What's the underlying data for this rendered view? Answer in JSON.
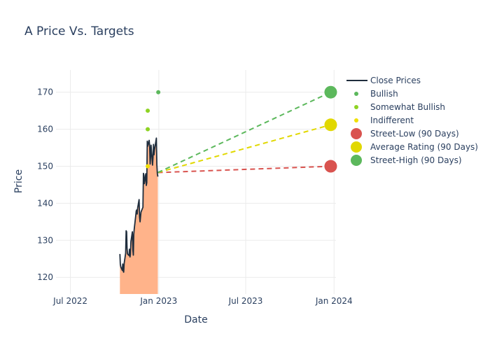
{
  "chart_data": {
    "type": "line",
    "title": "A Price Vs. Targets",
    "xlabel": "Date",
    "ylabel": "Price",
    "x_ticks": [
      {
        "label": "Jul 2022",
        "date": "2022-07-01"
      },
      {
        "label": "Jan 2023",
        "date": "2023-01-01"
      },
      {
        "label": "Jul 2023",
        "date": "2023-07-01"
      },
      {
        "label": "Jan 2024",
        "date": "2024-01-01"
      }
    ],
    "y_ticks": [
      120,
      130,
      140,
      150,
      160,
      170
    ],
    "xlim": [
      "2022-06-01",
      "2024-01-05"
    ],
    "ylim": [
      115.5,
      176
    ],
    "grid": true,
    "legend_position": "right",
    "close_prices": {
      "name": "Close Prices",
      "color": "#1f2d3d",
      "fill_color": "#ffb38a",
      "points": [
        [
          "2022-10-12",
          126.3
        ],
        [
          "2022-10-13",
          123.5
        ],
        [
          "2022-10-14",
          122.8
        ],
        [
          "2022-10-17",
          121.9
        ],
        [
          "2022-10-18",
          123.6
        ],
        [
          "2022-10-19",
          121.6
        ],
        [
          "2022-10-20",
          121.4
        ],
        [
          "2022-10-21",
          123.8
        ],
        [
          "2022-10-24",
          126.5
        ],
        [
          "2022-10-25",
          132.6
        ],
        [
          "2022-10-26",
          132.3
        ],
        [
          "2022-10-27",
          127.9
        ],
        [
          "2022-10-28",
          126.3
        ],
        [
          "2022-10-31",
          125.9
        ],
        [
          "2022-11-01",
          127.6
        ],
        [
          "2022-11-02",
          125.5
        ],
        [
          "2022-11-03",
          126.2
        ],
        [
          "2022-11-04",
          129.6
        ],
        [
          "2022-11-07",
          132.3
        ],
        [
          "2022-11-08",
          127.4
        ],
        [
          "2022-11-09",
          126.0
        ],
        [
          "2022-11-10",
          131.6
        ],
        [
          "2022-11-11",
          133.1
        ],
        [
          "2022-11-14",
          136.6
        ],
        [
          "2022-11-15",
          137.9
        ],
        [
          "2022-11-16",
          138.2
        ],
        [
          "2022-11-17",
          137.1
        ],
        [
          "2022-11-18",
          138.7
        ],
        [
          "2022-11-21",
          141.0
        ],
        [
          "2022-11-22",
          136.3
        ],
        [
          "2022-11-23",
          135.0
        ],
        [
          "2022-11-25",
          137.6
        ],
        [
          "2022-11-28",
          138.6
        ],
        [
          "2022-11-29",
          138.9
        ],
        [
          "2022-11-30",
          148.1
        ],
        [
          "2022-12-01",
          147.6
        ],
        [
          "2022-12-02",
          145.3
        ],
        [
          "2022-12-05",
          148.0
        ],
        [
          "2022-12-06",
          144.8
        ],
        [
          "2022-12-07",
          145.6
        ],
        [
          "2022-12-08",
          156.8
        ],
        [
          "2022-12-09",
          155.4
        ],
        [
          "2022-12-12",
          157.0
        ],
        [
          "2022-12-13",
          155.5
        ],
        [
          "2022-12-14",
          150.6
        ],
        [
          "2022-12-15",
          152.8
        ],
        [
          "2022-12-16",
          155.7
        ],
        [
          "2022-12-19",
          150.3
        ],
        [
          "2022-12-20",
          152.4
        ],
        [
          "2022-12-21",
          155.9
        ],
        [
          "2022-12-22",
          153.1
        ],
        [
          "2022-12-23",
          154.4
        ],
        [
          "2022-12-27",
          157.6
        ],
        [
          "2022-12-28",
          150.4
        ],
        [
          "2022-12-29",
          148.0
        ],
        [
          "2022-12-30",
          147.2
        ]
      ]
    },
    "rating_series": [
      {
        "name": "Bullish",
        "color": "#5cb85c",
        "points": [
          [
            "2022-12-31",
            170
          ]
        ]
      },
      {
        "name": "Somewhat Bullish",
        "color": "#8ed323",
        "points": [
          [
            "2022-12-09",
            165
          ],
          [
            "2022-12-09",
            160
          ]
        ]
      },
      {
        "name": "Indifferent",
        "color": "#f0e000",
        "points": [
          [
            "2022-12-09",
            150
          ]
        ]
      }
    ],
    "target_series": [
      {
        "name": "Street-Low (90 Days)",
        "color": "#d9534f",
        "start": [
          "2022-12-30",
          148.3
        ],
        "end": [
          "2023-12-25",
          150
        ]
      },
      {
        "name": "Average Rating (90 Days)",
        "color": "#e1d800",
        "start": [
          "2022-12-30",
          148.3
        ],
        "end": [
          "2023-12-25",
          161.2
        ]
      },
      {
        "name": "Street-High (90 Days)",
        "color": "#5cb85c",
        "start": [
          "2022-12-30",
          148.3
        ],
        "end": [
          "2023-12-25",
          170
        ]
      }
    ]
  }
}
